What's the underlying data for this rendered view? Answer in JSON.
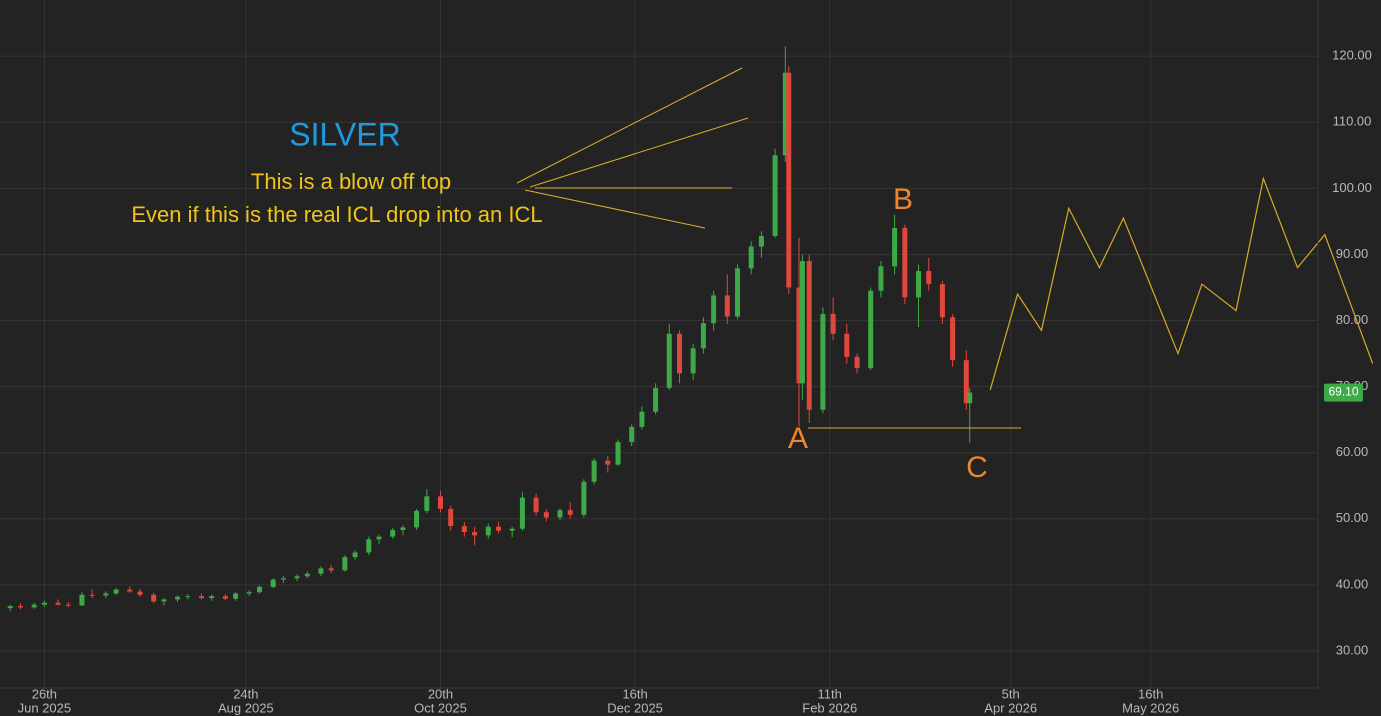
{
  "chart_data": {
    "type": "candlestick",
    "title": "SILVER",
    "annotations": [
      "This is a blow off top",
      "Even if this is the real ICL drop into an ICL"
    ],
    "wave_labels": [
      "A",
      "B",
      "C"
    ],
    "up_color": "#3daa47",
    "down_color": "#e0483c",
    "grid": true,
    "xlim": [
      "2025-06-13",
      "2026-07-04"
    ],
    "xticks": [
      {
        "value": "2025-06-26",
        "label": [
          "26th",
          "Jun 2025"
        ]
      },
      {
        "value": "2025-08-24",
        "label": [
          "24th",
          "Aug 2025"
        ]
      },
      {
        "value": "2025-10-20",
        "label": [
          "20th",
          "Oct 2025"
        ]
      },
      {
        "value": "2025-12-16",
        "label": [
          "16th",
          "Dec 2025"
        ]
      },
      {
        "value": "2026-02-11",
        "label": [
          "11th",
          "Feb 2026"
        ]
      },
      {
        "value": "2026-04-05",
        "label": [
          "5th",
          "Apr 2026"
        ]
      },
      {
        "value": "2026-05-16",
        "label": [
          "16th",
          "May 2026"
        ]
      }
    ],
    "ylim": [
      24.4,
      128.5
    ],
    "yticks": [
      {
        "value": 30,
        "label": "30.00"
      },
      {
        "value": 40,
        "label": "40.00"
      },
      {
        "value": 50,
        "label": "50.00"
      },
      {
        "value": 60,
        "label": "60.00"
      },
      {
        "value": 70,
        "label": "70.00"
      },
      {
        "value": 80,
        "label": "80.00"
      },
      {
        "value": 90,
        "label": "90.00"
      },
      {
        "value": 100,
        "label": "100.00"
      },
      {
        "value": 110,
        "label": "110.00"
      },
      {
        "value": 120,
        "label": "120.00"
      }
    ],
    "last_price": {
      "value": 69.1,
      "label": "69.10"
    },
    "x": [
      "2025-06-16",
      "2025-06-19",
      "2025-06-23",
      "2025-06-26",
      "2025-06-30",
      "2025-07-03",
      "2025-07-07",
      "2025-07-10",
      "2025-07-14",
      "2025-07-17",
      "2025-07-21",
      "2025-07-24",
      "2025-07-28",
      "2025-07-31",
      "2025-08-04",
      "2025-08-07",
      "2025-08-11",
      "2025-08-14",
      "2025-08-18",
      "2025-08-21",
      "2025-08-25",
      "2025-08-28",
      "2025-09-01",
      "2025-09-04",
      "2025-09-08",
      "2025-09-11",
      "2025-09-15",
      "2025-09-18",
      "2025-09-22",
      "2025-09-25",
      "2025-09-29",
      "2025-10-02",
      "2025-10-06",
      "2025-10-09",
      "2025-10-13",
      "2025-10-16",
      "2025-10-20",
      "2025-10-23",
      "2025-10-27",
      "2025-10-30",
      "2025-11-03",
      "2025-11-06",
      "2025-11-10",
      "2025-11-13",
      "2025-11-17",
      "2025-11-20",
      "2025-11-24",
      "2025-11-27",
      "2025-12-01",
      "2025-12-04",
      "2025-12-08",
      "2025-12-11",
      "2025-12-15",
      "2025-12-18",
      "2025-12-22",
      "2025-12-26",
      "2025-12-29",
      "2026-01-02",
      "2026-01-05",
      "2026-01-08",
      "2026-01-12",
      "2026-01-15",
      "2026-01-19",
      "2026-01-22",
      "2026-01-26",
      "2026-01-29",
      "2026-01-30",
      "2026-02-02",
      "2026-02-03",
      "2026-02-05",
      "2026-02-09",
      "2026-02-12",
      "2026-02-16",
      "2026-02-19",
      "2026-02-23",
      "2026-02-26",
      "2026-03-02",
      "2026-03-05",
      "2026-03-09",
      "2026-03-12",
      "2026-03-16",
      "2026-03-19",
      "2026-03-23",
      "2026-03-24"
    ],
    "open": [
      36.5,
      36.8,
      36.6,
      37.0,
      37.3,
      37.0,
      36.9,
      38.5,
      38.4,
      38.7,
      39.3,
      39.0,
      38.5,
      37.5,
      37.8,
      38.2,
      38.3,
      38.0,
      38.3,
      37.9,
      38.7,
      38.9,
      39.7,
      40.8,
      41.0,
      41.3,
      41.7,
      42.5,
      42.2,
      44.2,
      44.9,
      46.9,
      47.3,
      48.3,
      48.7,
      51.2,
      53.4,
      51.5,
      48.9,
      48.0,
      47.5,
      48.8,
      48.2,
      48.5,
      53.2,
      51.0,
      50.2,
      51.3,
      50.6,
      55.6,
      58.8,
      58.2,
      61.6,
      63.9,
      66.2,
      69.8,
      78.0,
      72.0,
      75.8,
      79.6,
      83.8,
      80.6,
      87.9,
      91.2,
      92.8,
      105.0,
      117.5,
      85.0,
      70.5,
      89.0,
      66.5,
      81.0,
      78.0,
      74.5,
      72.8,
      84.5,
      88.2,
      94.0,
      83.5,
      87.5,
      85.5,
      80.5,
      74.0,
      67.5
    ],
    "high": [
      37.0,
      37.2,
      37.3,
      37.6,
      37.8,
      37.4,
      38.9,
      39.3,
      39.0,
      39.5,
      39.8,
      39.4,
      38.8,
      38.0,
      38.4,
      38.6,
      38.7,
      38.5,
      38.6,
      38.9,
      39.2,
      39.9,
      41.0,
      41.4,
      41.6,
      42.0,
      42.8,
      43.0,
      44.5,
      45.2,
      47.3,
      47.6,
      48.6,
      49.0,
      51.5,
      54.5,
      54.2,
      52.0,
      49.5,
      48.8,
      49.3,
      49.6,
      48.8,
      54.0,
      53.8,
      51.5,
      51.6,
      52.5,
      56.0,
      59.2,
      59.5,
      62.0,
      64.3,
      67.0,
      70.5,
      79.5,
      78.5,
      76.5,
      80.5,
      84.5,
      87.0,
      88.5,
      92.0,
      93.5,
      106.0,
      121.5,
      118.5,
      92.5,
      90.0,
      90.0,
      82.0,
      83.5,
      79.5,
      75.0,
      85.0,
      89.0,
      96.0,
      94.5,
      88.5,
      89.5,
      86.0,
      81.0,
      75.5,
      69.8
    ],
    "low": [
      36.0,
      36.3,
      36.4,
      36.7,
      36.9,
      36.6,
      36.8,
      38.0,
      38.0,
      38.5,
      38.8,
      38.2,
      37.2,
      36.9,
      37.4,
      37.8,
      37.8,
      37.6,
      37.7,
      37.6,
      38.3,
      38.7,
      39.5,
      40.3,
      40.6,
      41.0,
      41.3,
      41.8,
      42.0,
      43.8,
      44.5,
      46.2,
      47.0,
      47.5,
      48.3,
      50.8,
      51.0,
      48.2,
      47.3,
      46.0,
      47.0,
      47.8,
      47.2,
      48.2,
      50.5,
      49.6,
      49.8,
      50.0,
      50.2,
      55.2,
      57.0,
      58.0,
      61.0,
      63.5,
      65.8,
      69.5,
      70.5,
      71.0,
      75.0,
      78.5,
      79.5,
      80.2,
      87.0,
      89.5,
      92.5,
      104.0,
      84.0,
      64.0,
      68.0,
      64.5,
      66.0,
      77.0,
      73.5,
      72.0,
      72.5,
      83.5,
      87.0,
      82.5,
      79.0,
      84.5,
      79.5,
      73.0,
      66.5,
      61.5
    ],
    "close": [
      36.8,
      36.6,
      37.0,
      37.3,
      37.0,
      36.9,
      38.5,
      38.4,
      38.7,
      39.3,
      39.0,
      38.5,
      37.5,
      37.8,
      38.2,
      38.3,
      38.0,
      38.3,
      37.9,
      38.7,
      38.9,
      39.7,
      40.8,
      41.0,
      41.3,
      41.7,
      42.5,
      42.2,
      44.2,
      44.9,
      46.9,
      47.3,
      48.3,
      48.7,
      51.2,
      53.4,
      51.5,
      48.9,
      48.0,
      47.5,
      48.8,
      48.2,
      48.5,
      53.2,
      51.0,
      50.2,
      51.3,
      50.6,
      55.6,
      58.8,
      58.2,
      61.6,
      63.9,
      66.2,
      69.8,
      78.0,
      72.0,
      75.8,
      79.6,
      83.8,
      80.6,
      87.9,
      91.2,
      92.8,
      105.0,
      117.5,
      85.0,
      70.5,
      89.0,
      66.5,
      81.0,
      78.0,
      74.5,
      72.8,
      84.5,
      88.2,
      94.0,
      83.5,
      87.5,
      85.5,
      80.5,
      74.0,
      67.5,
      69.1
    ],
    "projection": {
      "color": "#d6ab25",
      "x": [
        "2026-03-30",
        "2026-04-07",
        "2026-04-14",
        "2026-04-22",
        "2026-05-01",
        "2026-05-08",
        "2026-05-24",
        "2026-05-31",
        "2026-06-10",
        "2026-06-18",
        "2026-06-28",
        "2026-07-06",
        "2026-07-20"
      ],
      "values": [
        69.5,
        84,
        78.5,
        97,
        88,
        95.5,
        75,
        85.5,
        81.5,
        101.5,
        88,
        93,
        73.5
      ]
    }
  }
}
